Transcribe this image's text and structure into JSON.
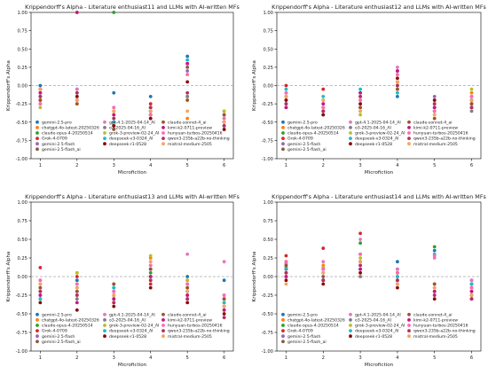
{
  "models": [
    {
      "name": "gemini-2.5-pro",
      "color": "#1f77b4"
    },
    {
      "name": "chatgpt-4o-latest-20250326",
      "color": "#ff7f0e"
    },
    {
      "name": "claude-opus-4-20250514",
      "color": "#2ca02c"
    },
    {
      "name": "Grok-4-0709",
      "color": "#d62728"
    },
    {
      "name": "gemini-2.5-flash",
      "color": "#9467bd"
    },
    {
      "name": "gemini-2.5-flash_ai",
      "color": "#8c564b"
    },
    {
      "name": "gpt-4.1-2025-04-14_AI",
      "color": "#e377c2"
    },
    {
      "name": "o3-2025-04-16_AI",
      "color": "#7f7f7f"
    },
    {
      "name": "grok-3-preview-02-24_AI",
      "color": "#bcbd22"
    },
    {
      "name": "deepseek-v3-0324_AI",
      "color": "#17becf"
    },
    {
      "name": "deepseek-r1-0528",
      "color": "#8b0a0a"
    },
    {
      "name": "claude-sonnet-4_ai",
      "color": "#a0522d"
    },
    {
      "name": "kimi-k2-0711-preview",
      "color": "#c71585"
    },
    {
      "name": "hunyuan-turbos-20250416",
      "color": "#ff69b4"
    },
    {
      "name": "qwen3-235b-a22b-no-thinking",
      "color": "#b03060"
    },
    {
      "name": "mistral-medium-2505",
      "color": "#f4a460"
    }
  ],
  "chart_data": [
    {
      "type": "scatter",
      "title": "Krippendorff's Alpha - Literature enthusiast11 and LLMs with AI-written MFs",
      "xlabel": "Microfiction",
      "ylabel": "Krippendorff's Alpha",
      "x_ticks": [
        1,
        2,
        3,
        4,
        5,
        6
      ],
      "ylim": [
        -1.0,
        1.0
      ],
      "y_ticks": [
        "-1.00",
        "-0.75",
        "-0.50",
        "-0.25",
        "0.00",
        "0.25",
        "0.50",
        "0.75",
        "1.00"
      ],
      "reference_line": 0.0,
      "legend_location": "lower-left",
      "series": [
        {
          "name": "gemini-2.5-pro",
          "values": [
            0.0,
            -0.05,
            -0.1,
            -0.15,
            0.4,
            -0.4
          ]
        },
        {
          "name": "chatgpt-4o-latest-20250326",
          "values": [
            -0.2,
            -0.25,
            -0.35,
            -0.3,
            -0.45,
            -0.35
          ]
        },
        {
          "name": "claude-opus-4-20250514",
          "values": [
            -0.1,
            1.0,
            1.0,
            -0.4,
            -0.15,
            -0.6
          ]
        },
        {
          "name": "Grok-4-0709",
          "values": [
            -0.15,
            -0.2,
            -0.55,
            -0.25,
            0.3,
            -0.55
          ]
        },
        {
          "name": "gemini-2.5-flash",
          "values": [
            -0.05,
            -0.1,
            -0.45,
            -0.3,
            0.2,
            -0.5
          ]
        },
        {
          "name": "gemini-2.5-flash_ai",
          "values": [
            -0.25,
            -0.2,
            -0.5,
            -0.35,
            0.25,
            -0.45
          ]
        },
        {
          "name": "gpt-4.1-2025-04-14_AI",
          "values": [
            -0.1,
            -0.05,
            -0.3,
            -0.4,
            0.15,
            -0.45
          ]
        },
        {
          "name": "o3-2025-04-16_AI",
          "values": [
            -0.2,
            -0.15,
            -0.35,
            -0.45,
            -0.15,
            -0.5
          ]
        },
        {
          "name": "grok-3-preview-02-24_AI",
          "values": [
            -0.3,
            -0.1,
            -0.4,
            -0.35,
            -0.2,
            -0.35
          ]
        },
        {
          "name": "deepseek-v3-0324_AI",
          "values": [
            -0.15,
            -0.2,
            -0.5,
            -0.3,
            0.35,
            -0.55
          ]
        },
        {
          "name": "deepseek-r1-0528",
          "values": [
            -0.05,
            -0.15,
            -0.55,
            -0.45,
            0.05,
            -0.6
          ]
        },
        {
          "name": "claude-sonnet-4_ai",
          "values": [
            -0.2,
            -0.25,
            -0.6,
            -0.4,
            -0.2,
            -0.4
          ]
        },
        {
          "name": "kimi-k2-0711-preview",
          "values": [
            -0.1,
            1.0,
            -0.4,
            -0.35,
            0.3,
            -0.5
          ]
        },
        {
          "name": "hunyuan-turbos-20250416",
          "values": [
            -0.25,
            -0.2,
            -0.3,
            -0.4,
            0.15,
            -0.45
          ]
        },
        {
          "name": "qwen3-235b-a22b-no-thinking",
          "values": [
            -0.15,
            -0.1,
            -0.45,
            -0.3,
            -0.1,
            -0.55
          ]
        },
        {
          "name": "mistral-medium-2505",
          "values": [
            -0.05,
            -0.2,
            -0.35,
            -0.35,
            -0.35,
            -0.5
          ]
        }
      ]
    },
    {
      "type": "scatter",
      "title": "Krippendorff's Alpha - Literature enthusiast12 and LLMs with AI-written MFs",
      "xlabel": "Microfiction",
      "ylabel": "Krippendorff's Alpha",
      "x_ticks": [
        1,
        2,
        3,
        4,
        5,
        6
      ],
      "ylim": [
        -1.0,
        1.0
      ],
      "y_ticks": [
        "-1.00",
        "-0.75",
        "-0.50",
        "-0.25",
        "0.00",
        "0.25",
        "0.50",
        "0.75",
        "1.00"
      ],
      "reference_line": 0.0,
      "legend_location": "lower-left",
      "series": [
        {
          "name": "gemini-2.5-pro",
          "values": [
            -0.25,
            -0.3,
            -0.1,
            -0.15,
            -0.3,
            -0.2
          ]
        },
        {
          "name": "chatgpt-4o-latest-20250326",
          "values": [
            -0.1,
            -0.35,
            -0.2,
            0.05,
            -0.25,
            -0.1
          ]
        },
        {
          "name": "claude-opus-4-20250514",
          "values": [
            -0.2,
            -0.4,
            -0.3,
            0.0,
            -0.35,
            -0.15
          ]
        },
        {
          "name": "Grok-4-0709",
          "values": [
            0.0,
            -0.05,
            -0.15,
            0.05,
            -0.2,
            -0.25
          ]
        },
        {
          "name": "gemini-2.5-flash",
          "values": [
            -0.15,
            -0.3,
            -0.25,
            -0.05,
            -0.15,
            -0.3
          ]
        },
        {
          "name": "gemini-2.5-flash_ai",
          "values": [
            -0.3,
            -0.35,
            -0.3,
            0.2,
            -0.3,
            -0.25
          ]
        },
        {
          "name": "gpt-4.1-2025-04-14_AI",
          "values": [
            -0.2,
            -0.25,
            -0.2,
            0.25,
            -0.25,
            -0.2
          ]
        },
        {
          "name": "o3-2025-04-16_AI",
          "values": [
            -0.1,
            -0.2,
            -0.35,
            0.15,
            -0.35,
            -0.35
          ]
        },
        {
          "name": "grok-3-preview-02-24_AI",
          "values": [
            -0.25,
            -0.3,
            -0.4,
            -0.05,
            -0.4,
            -0.05
          ]
        },
        {
          "name": "deepseek-v3-0324_AI",
          "values": [
            -0.05,
            -0.15,
            -0.05,
            -0.1,
            -0.3,
            -0.15
          ]
        },
        {
          "name": "deepseek-r1-0528",
          "values": [
            -0.2,
            -0.4,
            -0.25,
            0.1,
            -0.2,
            -0.3
          ]
        },
        {
          "name": "claude-sonnet-4_ai",
          "values": [
            -0.15,
            -0.35,
            -0.3,
            -0.05,
            -0.45,
            -0.25
          ]
        },
        {
          "name": "kimi-k2-0711-preview",
          "values": [
            -0.3,
            -0.25,
            -0.1,
            0.2,
            -0.3,
            -0.2
          ]
        },
        {
          "name": "hunyuan-turbos-20250416",
          "values": [
            -0.1,
            -0.3,
            -0.2,
            0.15,
            -0.35,
            -0.15
          ]
        },
        {
          "name": "qwen3-235b-a22b-no-thinking",
          "values": [
            -0.25,
            -0.35,
            -0.15,
            0.0,
            -0.25,
            -0.3
          ]
        },
        {
          "name": "mistral-medium-2505",
          "values": [
            -0.15,
            -0.2,
            -0.35,
            0.05,
            -0.4,
            -0.2
          ]
        }
      ]
    },
    {
      "type": "scatter",
      "title": "Krippendorff's Alpha - Literature enthusiast13 and LLMs with AI-written MFs",
      "xlabel": "Microfiction",
      "ylabel": "Krippendorff's Alpha",
      "x_ticks": [
        1,
        2,
        3,
        4,
        5,
        6
      ],
      "ylim": [
        -1.0,
        1.0
      ],
      "y_ticks": [
        "-1.00",
        "-0.75",
        "-0.50",
        "-0.25",
        "0.00",
        "0.25",
        "0.50",
        "0.75",
        "1.00"
      ],
      "reference_line": 0.0,
      "legend_location": "lower-left",
      "series": [
        {
          "name": "gemini-2.5-pro",
          "values": [
            -0.1,
            -0.05,
            -0.2,
            0.1,
            0.0,
            -0.05
          ]
        },
        {
          "name": "chatgpt-4o-latest-20250326",
          "values": [
            -0.2,
            0.05,
            -0.25,
            0.25,
            -0.05,
            -0.3
          ]
        },
        {
          "name": "claude-opus-4-20250514",
          "values": [
            -0.3,
            -0.1,
            -0.15,
            0.05,
            -0.15,
            -0.35
          ]
        },
        {
          "name": "Grok-4-0709",
          "values": [
            0.12,
            0.0,
            -0.3,
            -0.1,
            -0.25,
            -0.4
          ]
        },
        {
          "name": "gemini-2.5-flash",
          "values": [
            -0.15,
            -0.2,
            -0.1,
            0.15,
            -0.2,
            -0.25
          ]
        },
        {
          "name": "gemini-2.5-flash_ai",
          "values": [
            -0.25,
            -0.25,
            -0.35,
            0.0,
            -0.1,
            -0.45
          ]
        },
        {
          "name": "gpt-4.1-2025-04-14_AI",
          "values": [
            -0.05,
            -0.15,
            -0.2,
            0.2,
            0.3,
            0.2
          ]
        },
        {
          "name": "o3-2025-04-16_AI",
          "values": [
            -0.2,
            -0.3,
            -0.25,
            -0.05,
            -0.3,
            -0.3
          ]
        },
        {
          "name": "grok-3-preview-02-24_AI",
          "values": [
            -0.1,
            0.05,
            -0.3,
            0.28,
            -0.05,
            -0.4
          ]
        },
        {
          "name": "deepseek-v3-0324_AI",
          "values": [
            -0.3,
            -0.15,
            -0.15,
            0.1,
            -0.2,
            -0.35
          ]
        },
        {
          "name": "deepseek-r1-0528",
          "values": [
            -0.35,
            -0.45,
            -0.4,
            -0.15,
            -0.35,
            -0.5
          ]
        },
        {
          "name": "claude-sonnet-4_ai",
          "values": [
            -0.15,
            -0.2,
            -0.1,
            0.1,
            -0.15,
            -0.3
          ]
        },
        {
          "name": "kimi-k2-0711-preview",
          "values": [
            -0.25,
            -0.35,
            -0.3,
            0.0,
            -0.25,
            -0.45
          ]
        },
        {
          "name": "hunyuan-turbos-20250416",
          "values": [
            -0.05,
            -0.1,
            -0.2,
            0.15,
            -0.1,
            -0.25
          ]
        },
        {
          "name": "qwen3-235b-a22b-no-thinking",
          "values": [
            -0.2,
            -0.25,
            -0.35,
            -0.05,
            -0.3,
            -0.55
          ]
        },
        {
          "name": "mistral-medium-2505",
          "values": [
            -0.1,
            -0.15,
            -0.25,
            0.2,
            -0.2,
            -0.4
          ]
        }
      ]
    },
    {
      "type": "scatter",
      "title": "Krippendorff's Alpha - Literature enthusiast14 and LLMs with AI-written MFs",
      "xlabel": "Microfiction",
      "ylabel": "Krippendorff's Alpha",
      "x_ticks": [
        1,
        2,
        3,
        4,
        5,
        6
      ],
      "ylim": [
        -1.0,
        1.0
      ],
      "y_ticks": [
        "-1.00",
        "-0.75",
        "-0.50",
        "-0.25",
        "0.00",
        "0.25",
        "0.50",
        "0.75",
        "1.00"
      ],
      "reference_line": 0.0,
      "legend_location": "lower-left",
      "series": [
        {
          "name": "gemini-2.5-pro",
          "values": [
            0.1,
            0.05,
            0.3,
            0.2,
            0.35,
            -0.05
          ]
        },
        {
          "name": "chatgpt-4o-latest-20250326",
          "values": [
            0.0,
            0.15,
            0.05,
            -0.1,
            -0.15,
            -0.2
          ]
        },
        {
          "name": "claude-opus-4-20250514",
          "values": [
            0.2,
            0.1,
            0.45,
            0.0,
            0.4,
            -0.1
          ]
        },
        {
          "name": "Grok-4-0709",
          "values": [
            0.28,
            0.38,
            0.58,
            0.1,
            -0.2,
            -0.15
          ]
        },
        {
          "name": "gemini-2.5-flash",
          "values": [
            0.15,
            -0.05,
            0.2,
            -0.05,
            -0.25,
            -0.1
          ]
        },
        {
          "name": "gemini-2.5-flash_ai",
          "values": [
            0.05,
            0.0,
            0.1,
            0.05,
            -0.1,
            -0.25
          ]
        },
        {
          "name": "gpt-4.1-2025-04-14_AI",
          "values": [
            0.18,
            0.2,
            0.5,
            0.1,
            0.25,
            -0.05
          ]
        },
        {
          "name": "o3-2025-04-16_AI",
          "values": [
            0.1,
            -0.05,
            0.0,
            -0.05,
            -0.2,
            -0.15
          ]
        },
        {
          "name": "grok-3-preview-02-24_AI",
          "values": [
            0.05,
            0.12,
            0.25,
            0.0,
            -0.15,
            -0.2
          ]
        },
        {
          "name": "deepseek-v3-0324_AI",
          "values": [
            0.12,
            0.05,
            0.15,
            0.0,
            0.3,
            -0.1
          ]
        },
        {
          "name": "deepseek-r1-0528",
          "values": [
            -0.05,
            -0.1,
            0.05,
            -0.15,
            -0.3,
            -0.3
          ]
        },
        {
          "name": "claude-sonnet-4_ai",
          "values": [
            0.15,
            0.1,
            0.2,
            0.05,
            -0.1,
            -0.25
          ]
        },
        {
          "name": "kimi-k2-0711-preview",
          "values": [
            0.0,
            -0.05,
            0.1,
            -0.1,
            -0.2,
            -0.2
          ]
        },
        {
          "name": "hunyuan-turbos-20250416",
          "values": [
            0.2,
            0.1,
            0.3,
            0.05,
            0.28,
            -0.15
          ]
        },
        {
          "name": "qwen3-235b-a22b-no-thinking",
          "values": [
            0.05,
            -0.05,
            0.15,
            -0.05,
            -0.25,
            -0.3
          ]
        },
        {
          "name": "mistral-medium-2505",
          "values": [
            -0.1,
            0.05,
            0.2,
            -0.1,
            -0.15,
            -0.25
          ]
        }
      ]
    }
  ]
}
